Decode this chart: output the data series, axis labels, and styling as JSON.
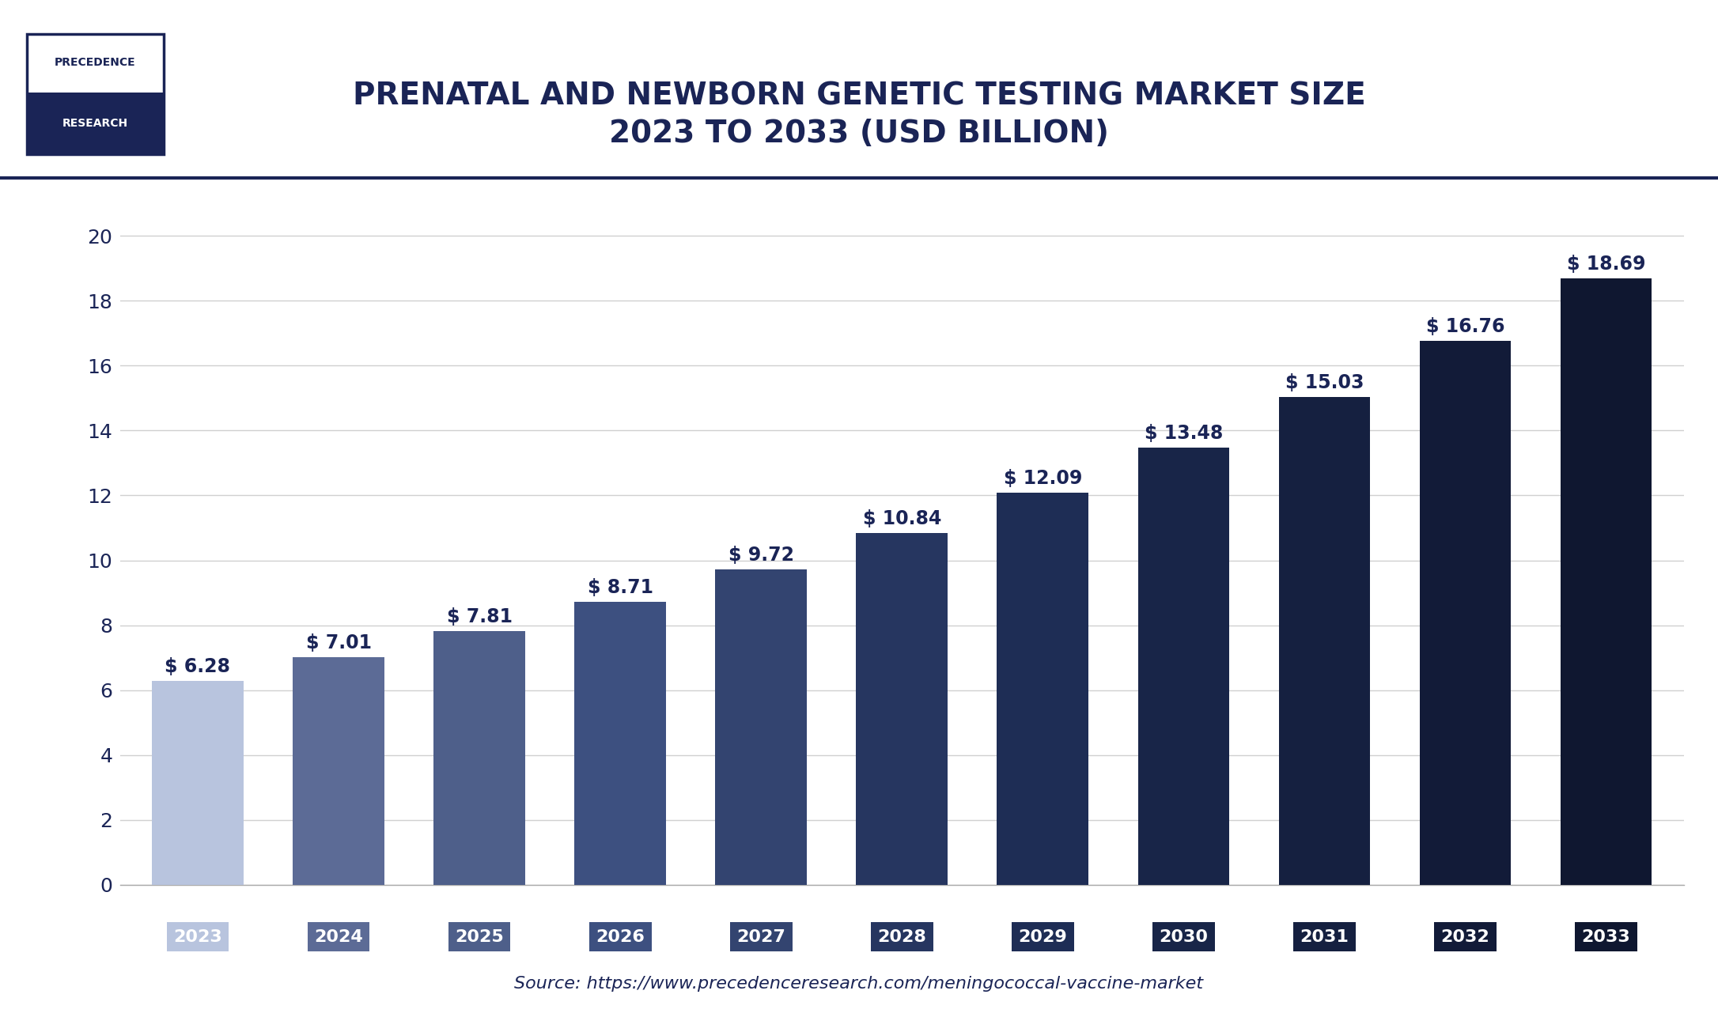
{
  "title_line1": "PRENATAL AND NEWBORN GENETIC TESTING MARKET SIZE",
  "title_line2": "2023 TO 2033 (USD BILLION)",
  "source_text": "Source: https://www.precedenceresearch.com/meningococcal-vaccine-market",
  "years": [
    "2023",
    "2024",
    "2025",
    "2026",
    "2027",
    "2028",
    "2029",
    "2030",
    "2031",
    "2032",
    "2033"
  ],
  "values": [
    6.28,
    7.01,
    7.81,
    8.71,
    9.72,
    10.84,
    12.09,
    13.48,
    15.03,
    16.76,
    18.69
  ],
  "bar_colors": [
    "#b8c4de",
    "#5c6b96",
    "#4e5f8a",
    "#3d5080",
    "#334470",
    "#263660",
    "#1e2d55",
    "#182548",
    "#152040",
    "#121b38",
    "#0f1730"
  ],
  "ylim": [
    0,
    21
  ],
  "yticks": [
    0,
    2,
    4,
    6,
    8,
    10,
    12,
    14,
    16,
    18,
    20
  ],
  "background_color": "#ffffff",
  "plot_bg_color": "#ffffff",
  "grid_color": "#d0d0d0",
  "title_color": "#1a2456",
  "logo_bottom_bg": "#1a2456",
  "logo_border_color": "#1a2456",
  "separator_color": "#1a2456",
  "value_label_fontsize": 17,
  "title_fontsize": 28,
  "source_fontsize": 16,
  "ytick_fontsize": 18,
  "xtick_fontsize": 16,
  "bar_width": 0.65
}
